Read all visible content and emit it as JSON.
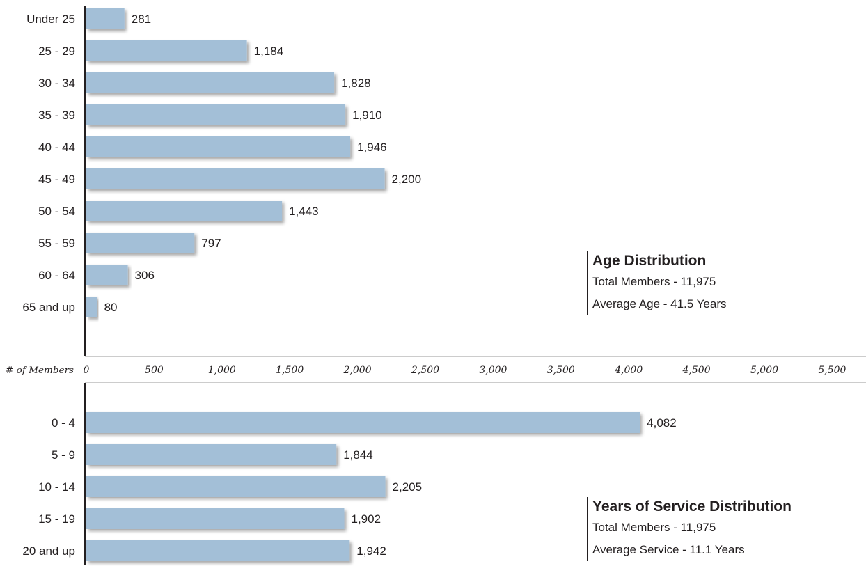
{
  "axis": {
    "label": "# of Members",
    "ticks": [
      "0",
      "500",
      "1,000",
      "1,500",
      "2,000",
      "2,500",
      "3,000",
      "3,500",
      "4,000",
      "4,500",
      "5,000",
      "5,500"
    ]
  },
  "age_panel": {
    "title": "Age Distribution",
    "line1": "Total Members - 11,975",
    "line2": "Average Age - 41.5 Years"
  },
  "service_panel": {
    "title": "Years of Service Distribution",
    "line1": "Total Members - 11,975",
    "line2": "Average Service - 11.1 Years"
  },
  "colors": {
    "bar": "#a3bfd7",
    "bar_shadow": "#d9d9d9",
    "axis": "#231f20"
  },
  "chart_data": [
    {
      "type": "bar",
      "orientation": "horizontal",
      "title": "Age Distribution",
      "xlabel": "# of Members",
      "xlim": [
        0,
        5500
      ],
      "categories": [
        "Under 25",
        "25 - 29",
        "30 - 34",
        "35 - 39",
        "40 - 44",
        "45 - 49",
        "50 - 54",
        "55 - 59",
        "60 - 64",
        "65 and up"
      ],
      "values": [
        281,
        1184,
        1828,
        1910,
        1946,
        2200,
        1443,
        797,
        306,
        80
      ],
      "value_labels": [
        "281",
        "1,184",
        "1,828",
        "1,910",
        "1,946",
        "2,200",
        "1,443",
        "797",
        "306",
        "80"
      ]
    },
    {
      "type": "bar",
      "orientation": "horizontal",
      "title": "Years of Service Distribution",
      "xlabel": "# of Members",
      "xlim": [
        0,
        5500
      ],
      "categories": [
        "0 - 4",
        "5 - 9",
        "10 - 14",
        "15 - 19",
        "20 and up"
      ],
      "values": [
        4082,
        1844,
        2205,
        1902,
        1942
      ],
      "value_labels": [
        "4,082",
        "1,844",
        "2,205",
        "1,902",
        "1,942"
      ]
    }
  ]
}
